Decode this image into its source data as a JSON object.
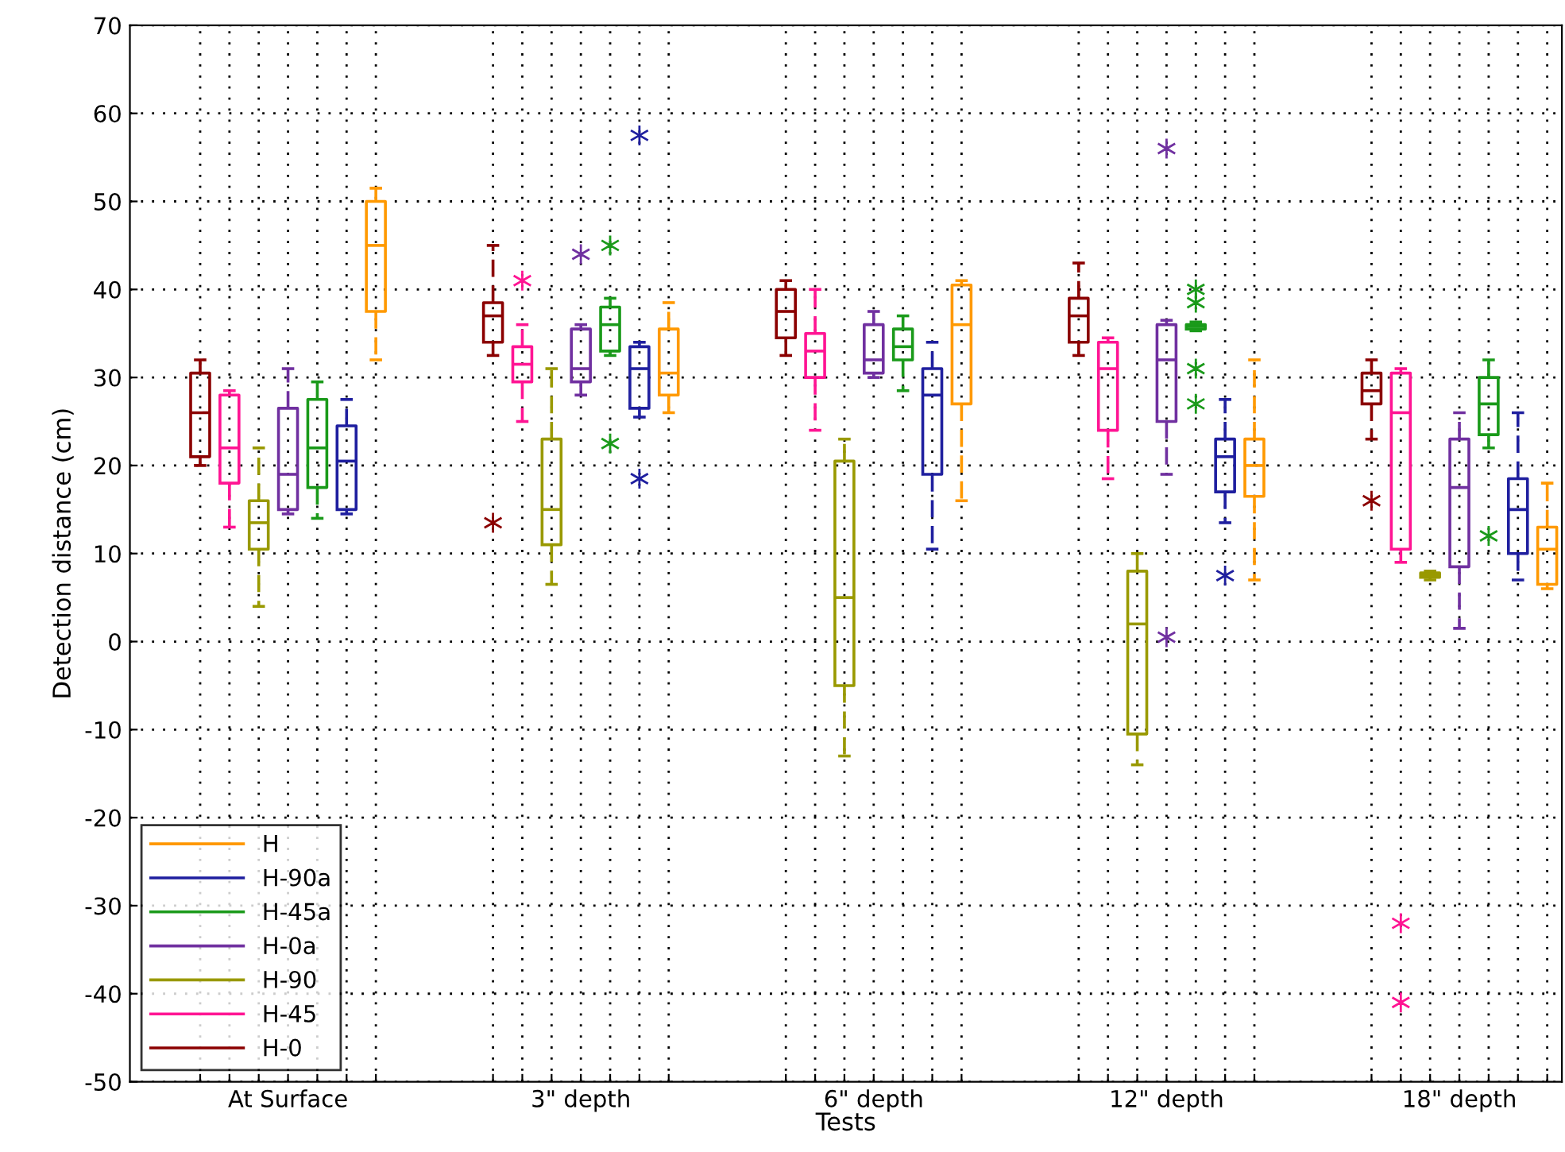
{
  "chart_data": {
    "type": "box",
    "xlabel": "Tests",
    "ylabel": "Detection distance (cm)",
    "categories": [
      "At Surface",
      "3\" depth",
      "6\" depth",
      "12\" depth",
      "18\" depth"
    ],
    "ylim": [
      -50,
      70
    ],
    "yticks": [
      -50,
      -40,
      -30,
      -20,
      -10,
      0,
      10,
      20,
      30,
      40,
      50,
      60,
      70
    ],
    "grid": true,
    "legend": "bottom left",
    "marker": "star",
    "series": [
      {
        "name": "H-0",
        "color": "#8b0000",
        "boxes": [
          {
            "low": 20,
            "q1": 21,
            "median": 26,
            "q3": 30.5,
            "high": 32
          },
          {
            "low": 32.5,
            "q1": 34,
            "median": 37,
            "q3": 38.5,
            "high": 45,
            "outliers": [
              13.5
            ]
          },
          {
            "low": 32.5,
            "q1": 34.5,
            "median": 37.5,
            "q3": 40,
            "high": 41
          },
          {
            "low": 32.5,
            "q1": 34,
            "median": 37,
            "q3": 39,
            "high": 43
          },
          {
            "low": 23,
            "q1": 27,
            "median": 28.5,
            "q3": 30.5,
            "high": 32,
            "outliers": [
              16
            ]
          }
        ]
      },
      {
        "name": "H-45",
        "color": "#ff1493",
        "boxes": [
          {
            "low": 13,
            "q1": 18,
            "median": 22,
            "q3": 28,
            "high": 28.5
          },
          {
            "low": 25,
            "q1": 29.5,
            "median": 31.5,
            "q3": 33.5,
            "high": 36,
            "outliers": [
              41
            ]
          },
          {
            "low": 24,
            "q1": 30,
            "median": 33,
            "q3": 35,
            "high": 40
          },
          {
            "low": 18.5,
            "q1": 24,
            "median": 31,
            "q3": 34,
            "high": 34.5
          },
          {
            "low": 9,
            "q1": 10.5,
            "median": 26,
            "q3": 30.5,
            "high": 31,
            "outliers": [
              -32,
              -41
            ]
          }
        ]
      },
      {
        "name": "H-90",
        "color": "#999900",
        "boxes": [
          {
            "low": 4,
            "q1": 10.5,
            "median": 13.5,
            "q3": 16,
            "high": 22
          },
          {
            "low": 6.5,
            "q1": 11,
            "median": 15,
            "q3": 23,
            "high": 31
          },
          {
            "low": -13,
            "q1": -5,
            "median": 5,
            "q3": 20.5,
            "high": 23
          },
          {
            "low": -14,
            "q1": -10.5,
            "median": 2,
            "q3": 8,
            "high": 10
          },
          {
            "low": 7,
            "q1": 7.3,
            "median": 7.5,
            "q3": 7.8,
            "high": 8
          }
        ]
      },
      {
        "name": "H-0a",
        "color": "#7030a0",
        "boxes": [
          {
            "low": 14.5,
            "q1": 15,
            "median": 19,
            "q3": 26.5,
            "high": 31
          },
          {
            "low": 28,
            "q1": 29.5,
            "median": 31,
            "q3": 35.5,
            "high": 36,
            "outliers": [
              44
            ]
          },
          {
            "low": 30,
            "q1": 30.5,
            "median": 32,
            "q3": 36,
            "high": 37.5
          },
          {
            "low": 19,
            "q1": 25,
            "median": 32,
            "q3": 36,
            "high": 36.5,
            "outliers": [
              56,
              0.5
            ]
          },
          {
            "low": 1.5,
            "q1": 8.5,
            "median": 17.5,
            "q3": 23,
            "high": 26
          }
        ]
      },
      {
        "name": "H-45a",
        "color": "#1a9a1a",
        "boxes": [
          {
            "low": 14,
            "q1": 17.5,
            "median": 22,
            "q3": 27.5,
            "high": 29.5
          },
          {
            "low": 32.5,
            "q1": 33,
            "median": 36,
            "q3": 38,
            "high": 39,
            "outliers": [
              45,
              22.5
            ]
          },
          {
            "low": 28.5,
            "q1": 32,
            "median": 33.5,
            "q3": 35.5,
            "high": 37
          },
          {
            "low": 35.3,
            "q1": 35.5,
            "median": 35.8,
            "q3": 36,
            "high": 36.3,
            "outliers": [
              40,
              38.5,
              31,
              27
            ]
          },
          {
            "low": 22,
            "q1": 23.5,
            "median": 27,
            "q3": 30,
            "high": 32,
            "outliers": [
              12
            ]
          }
        ]
      },
      {
        "name": "H-90a",
        "color": "#1f1f9f",
        "boxes": [
          {
            "low": 14.5,
            "q1": 15,
            "median": 20.5,
            "q3": 24.5,
            "high": 27.5
          },
          {
            "low": 25.5,
            "q1": 26.5,
            "median": 31,
            "q3": 33.5,
            "high": 34,
            "outliers": [
              57.5,
              18.5
            ]
          },
          {
            "low": 10.5,
            "q1": 19,
            "median": 28,
            "q3": 31,
            "high": 34
          },
          {
            "low": 13.5,
            "q1": 17,
            "median": 21,
            "q3": 23,
            "high": 27.5,
            "outliers": [
              7.5
            ]
          },
          {
            "low": 7,
            "q1": 10,
            "median": 15,
            "q3": 18.5,
            "high": 26
          }
        ]
      },
      {
        "name": "H",
        "color": "#ff9900",
        "boxes": [
          {
            "low": 32,
            "q1": 37.5,
            "median": 45,
            "q3": 50,
            "high": 51.5
          },
          {
            "low": 26,
            "q1": 28,
            "median": 30.5,
            "q3": 35.5,
            "high": 38.5
          },
          {
            "low": 16,
            "q1": 27,
            "median": 36,
            "q3": 40.5,
            "high": 41
          },
          {
            "low": 7,
            "q1": 16.5,
            "median": 20,
            "q3": 23,
            "high": 32
          },
          {
            "low": 6,
            "q1": 6.5,
            "median": 10.5,
            "q3": 13,
            "high": 18
          }
        ]
      }
    ]
  }
}
